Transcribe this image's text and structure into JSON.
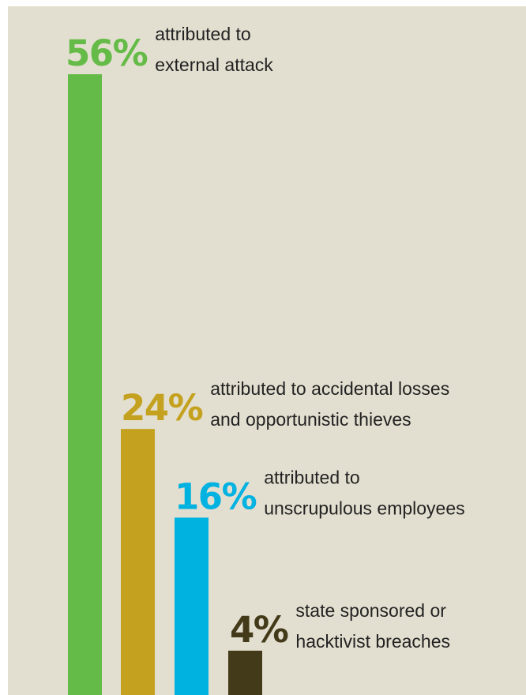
{
  "chart_data": {
    "type": "bar",
    "categories": [
      "attributed to external attack",
      "attributed to accidental losses and opportunistic thieves",
      "attributed to unscrupulous employees",
      "state sponsored or hacktivist breaches"
    ],
    "values": [
      56,
      24,
      16,
      4
    ],
    "value_labels": [
      "56%",
      "24%",
      "16%",
      "4%"
    ],
    "labels": [
      [
        "attributed to",
        "external attack"
      ],
      [
        "attributed to accidental losses",
        "and opportunistic thieves"
      ],
      [
        "attributed to",
        "unscrupulous employees"
      ],
      [
        "state sponsored or",
        "hacktivist breaches"
      ]
    ],
    "colors": [
      "#65bb47",
      "#c4a11e",
      "#00b2e0",
      "#433a19"
    ],
    "background": "#e3dfd0",
    "ylim": [
      0,
      56
    ],
    "grid": false,
    "legend": "none"
  }
}
